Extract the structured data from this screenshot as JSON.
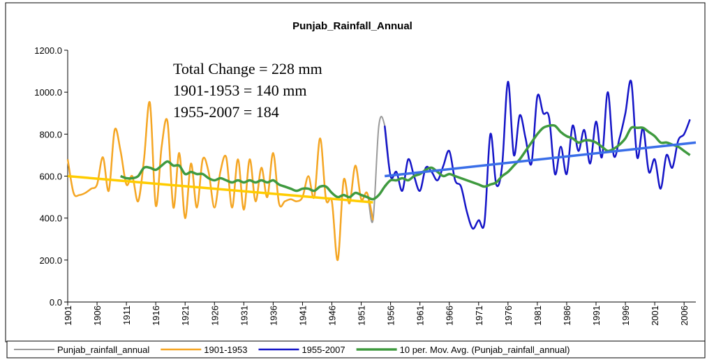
{
  "chart_data": {
    "type": "line",
    "title": "Punjab_Rainfall_Annual",
    "annotations": [
      "Total Change = 228 mm",
      "1901-1953 = 140 mm",
      "1955-2007 = 184"
    ],
    "x": [
      1901,
      1902,
      1903,
      1904,
      1905,
      1906,
      1907,
      1908,
      1909,
      1910,
      1911,
      1912,
      1913,
      1914,
      1915,
      1916,
      1917,
      1918,
      1919,
      1920,
      1921,
      1922,
      1923,
      1924,
      1925,
      1926,
      1927,
      1928,
      1929,
      1930,
      1931,
      1932,
      1933,
      1934,
      1935,
      1936,
      1937,
      1938,
      1939,
      1940,
      1941,
      1942,
      1943,
      1944,
      1945,
      1946,
      1947,
      1948,
      1949,
      1950,
      1951,
      1952,
      1953,
      1954,
      1955,
      1956,
      1957,
      1958,
      1959,
      1960,
      1961,
      1962,
      1963,
      1964,
      1965,
      1966,
      1967,
      1968,
      1969,
      1970,
      1971,
      1972,
      1973,
      1974,
      1975,
      1976,
      1977,
      1978,
      1979,
      1980,
      1981,
      1982,
      1983,
      1984,
      1985,
      1986,
      1987,
      1988,
      1989,
      1990,
      1991,
      1992,
      1993,
      1994,
      1995,
      1996,
      1997,
      1998,
      1999,
      2000,
      2001,
      2002,
      2003,
      2004,
      2005,
      2006,
      2007
    ],
    "series": [
      {
        "name": "Punjab_rainfall_annual",
        "color": "#9a9a9a",
        "width": 2,
        "values": [
          680,
          520,
          510,
          520,
          540,
          560,
          690,
          530,
          820,
          720,
          560,
          600,
          480,
          680,
          950,
          460,
          740,
          860,
          450,
          710,
          400,
          660,
          450,
          680,
          620,
          450,
          620,
          690,
          450,
          680,
          440,
          680,
          480,
          640,
          500,
          710,
          470,
          480,
          490,
          480,
          500,
          600,
          500,
          780,
          490,
          480,
          200,
          580,
          470,
          650,
          490,
          520,
          390,
          840,
          840,
          600,
          620,
          530,
          680,
          600,
          530,
          640,
          620,
          580,
          650,
          720,
          580,
          550,
          430,
          350,
          390,
          380,
          800,
          560,
          650,
          1050,
          700,
          890,
          780,
          660,
          980,
          900,
          880,
          610,
          740,
          610,
          840,
          720,
          820,
          660,
          860,
          690,
          1000,
          700,
          780,
          900,
          1050,
          690,
          830,
          620,
          680,
          540,
          700,
          640,
          770,
          800,
          870
        ]
      },
      {
        "name": "1901-1953",
        "color": "#f5a623",
        "width": 2.5,
        "values": [
          680,
          520,
          510,
          520,
          540,
          560,
          690,
          530,
          820,
          720,
          560,
          600,
          480,
          680,
          950,
          460,
          740,
          860,
          450,
          710,
          400,
          660,
          450,
          680,
          620,
          450,
          620,
          690,
          450,
          680,
          440,
          680,
          480,
          640,
          500,
          710,
          470,
          480,
          490,
          480,
          500,
          600,
          500,
          780,
          490,
          480,
          200,
          580,
          470,
          650,
          490,
          520,
          390,
          null,
          null,
          null,
          null,
          null,
          null,
          null,
          null,
          null,
          null,
          null,
          null,
          null,
          null,
          null,
          null,
          null,
          null,
          null,
          null,
          null,
          null,
          null,
          null,
          null,
          null,
          null,
          null,
          null,
          null,
          null,
          null,
          null,
          null,
          null,
          null,
          null,
          null,
          null,
          null,
          null,
          null,
          null,
          null,
          null,
          null,
          null,
          null,
          null,
          null,
          null,
          null,
          null,
          null
        ]
      },
      {
        "name": "1955-2007",
        "color": "#1515c8",
        "width": 2.5,
        "values": [
          null,
          null,
          null,
          null,
          null,
          null,
          null,
          null,
          null,
          null,
          null,
          null,
          null,
          null,
          null,
          null,
          null,
          null,
          null,
          null,
          null,
          null,
          null,
          null,
          null,
          null,
          null,
          null,
          null,
          null,
          null,
          null,
          null,
          null,
          null,
          null,
          null,
          null,
          null,
          null,
          null,
          null,
          null,
          null,
          null,
          null,
          null,
          null,
          null,
          null,
          null,
          null,
          null,
          null,
          840,
          600,
          620,
          530,
          680,
          600,
          530,
          640,
          620,
          580,
          650,
          720,
          580,
          550,
          430,
          350,
          390,
          380,
          800,
          560,
          650,
          1050,
          700,
          890,
          780,
          660,
          980,
          900,
          880,
          610,
          740,
          610,
          840,
          720,
          820,
          660,
          860,
          690,
          1000,
          700,
          780,
          900,
          1050,
          690,
          830,
          620,
          680,
          540,
          700,
          640,
          770,
          800,
          870
        ]
      },
      {
        "name": "10 per. Mov. Avg. (Punjab_rainfall_annual)",
        "color": "#3f9a3f",
        "width": 3.5,
        "values": [
          null,
          null,
          null,
          null,
          null,
          null,
          null,
          null,
          null,
          600,
          590,
          590,
          600,
          640,
          640,
          630,
          650,
          670,
          650,
          650,
          610,
          620,
          610,
          610,
          590,
          580,
          590,
          580,
          570,
          580,
          570,
          580,
          570,
          580,
          570,
          580,
          560,
          550,
          540,
          530,
          540,
          540,
          530,
          550,
          550,
          520,
          500,
          510,
          500,
          520,
          510,
          500,
          490,
          510,
          550,
          580,
          580,
          590,
          580,
          600,
          610,
          630,
          640,
          620,
          600,
          610,
          600,
          590,
          580,
          570,
          560,
          550,
          560,
          570,
          600,
          620,
          650,
          680,
          720,
          760,
          800,
          830,
          840,
          840,
          810,
          790,
          780,
          760,
          770,
          770,
          760,
          740,
          720,
          730,
          750,
          780,
          830,
          830,
          830,
          810,
          790,
          760,
          760,
          750,
          740,
          720,
          700
        ]
      }
    ],
    "trendlines": [
      {
        "color": "#ffcc00",
        "x": [
          1901,
          1953
        ],
        "values": [
          600,
          475
        ]
      },
      {
        "color": "#3a6ee8",
        "x": [
          1955,
          2008
        ],
        "values": [
          600,
          760
        ]
      }
    ],
    "xlim": [
      1901,
      2008
    ],
    "ylim": [
      0,
      1200
    ],
    "xticks": [
      1901,
      1906,
      1911,
      1916,
      1921,
      1926,
      1931,
      1936,
      1941,
      1946,
      1951,
      1956,
      1961,
      1966,
      1971,
      1976,
      1981,
      1986,
      1991,
      1996,
      2001,
      2006
    ],
    "yticks": [
      {
        "value": 0,
        "label": "0.0"
      },
      {
        "value": 200,
        "label": "200.0"
      },
      {
        "value": 400,
        "label": "400.0"
      },
      {
        "value": 600,
        "label": "600.0"
      },
      {
        "value": 800,
        "label": "800.0"
      },
      {
        "value": 1000,
        "label": "1000.0"
      },
      {
        "value": 1200,
        "label": "1200.0"
      }
    ],
    "legend": "bottom"
  }
}
